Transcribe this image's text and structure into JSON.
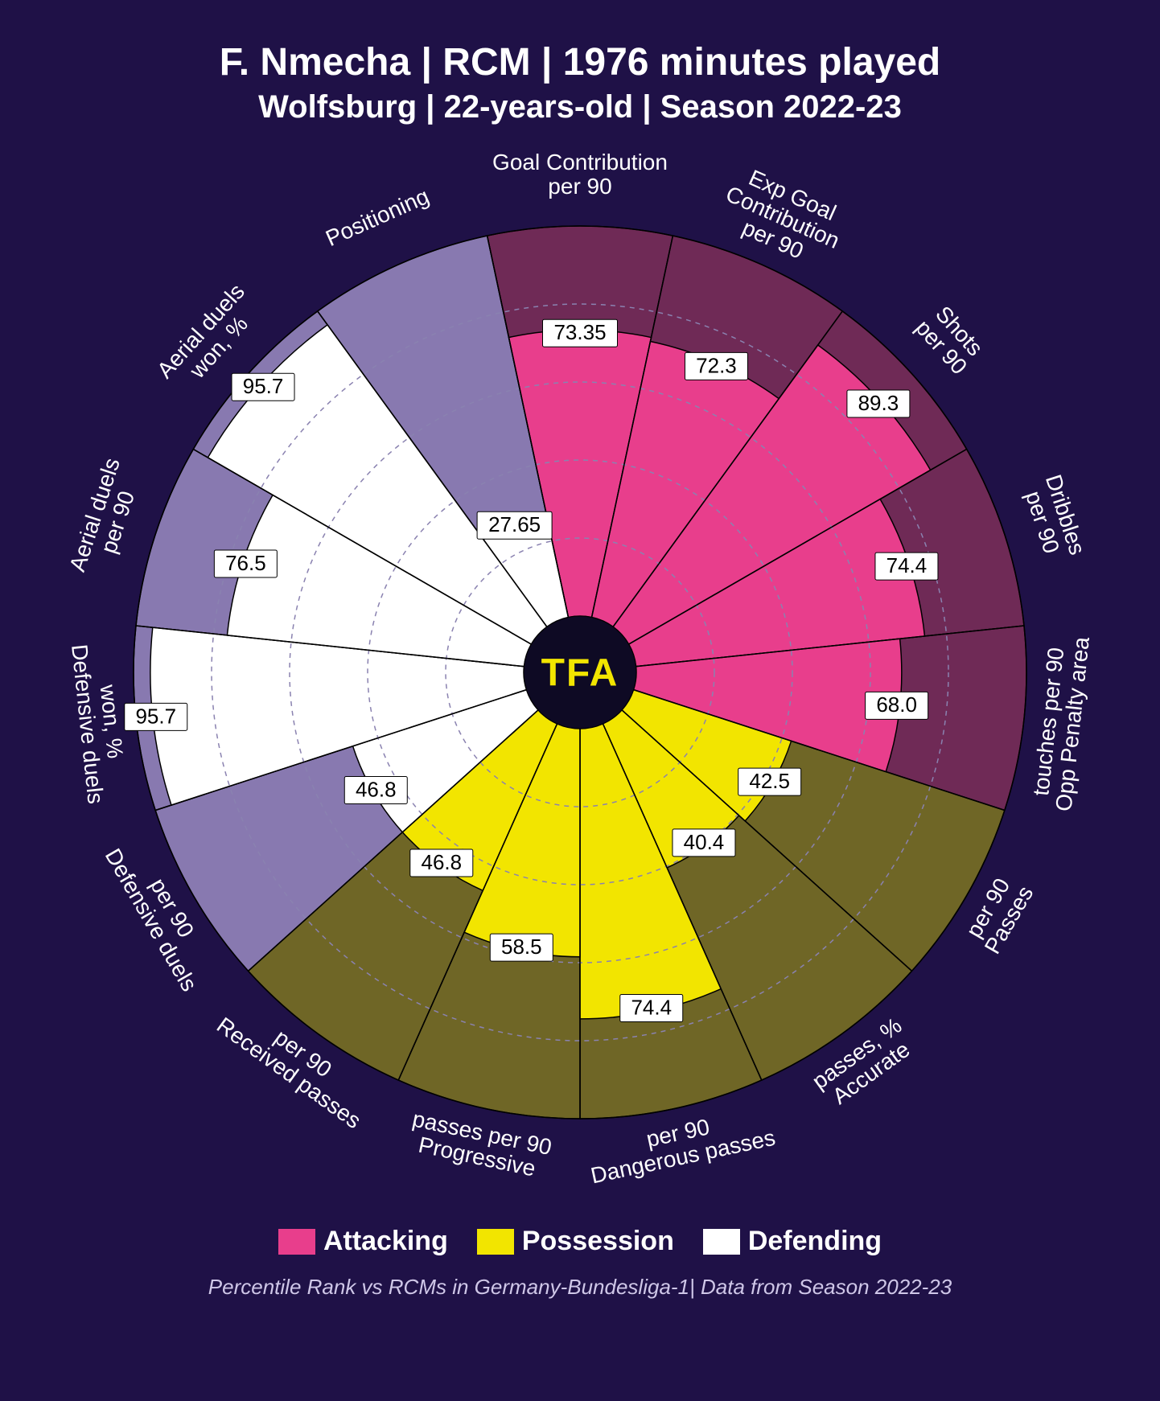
{
  "header": {
    "title": "F. Nmecha | RCM | 1976 minutes played",
    "subtitle": "Wolfsburg | 22-years-old | Season 2022-23"
  },
  "chart": {
    "type": "polar-bar",
    "background_color": "#1f1147",
    "center_label": "TFA",
    "center_label_color": "#f2e500",
    "center_circle_fill": "#0e0a24",
    "outer_dark_radius": 100,
    "inner_circle_radius": 12,
    "grid_rings": [
      20,
      40,
      60,
      80
    ],
    "grid_color": "#8a82b0",
    "grid_dash": "6 6",
    "sector_stroke": "#000000",
    "sector_stroke_width": 1.5,
    "value_scale_max": 100,
    "categories": {
      "Attacking": {
        "fill": "#e83e8c",
        "bg": "#6f2a56"
      },
      "Possession": {
        "fill": "#f2e500",
        "bg": "#6f6626"
      },
      "Defending": {
        "fill": "#ffffff",
        "bg": "#8879b0"
      }
    },
    "metrics": [
      {
        "label_lines": [
          "Goal Contribution",
          "per 90"
        ],
        "value": 73.35,
        "value_text": "73.35",
        "category": "Attacking"
      },
      {
        "label_lines": [
          "Exp Goal",
          "Contribution",
          "per 90"
        ],
        "value": 72.3,
        "value_text": "72.3",
        "category": "Attacking"
      },
      {
        "label_lines": [
          "Shots",
          "per 90"
        ],
        "value": 89.3,
        "value_text": "89.3",
        "category": "Attacking"
      },
      {
        "label_lines": [
          "Dribbles",
          "per 90"
        ],
        "value": 74.4,
        "value_text": "74.4",
        "category": "Attacking"
      },
      {
        "label_lines": [
          "Opp Penalty area",
          "touches per 90"
        ],
        "value": 68.0,
        "value_text": "68.0",
        "category": "Attacking"
      },
      {
        "label_lines": [
          "Passes",
          "per 90"
        ],
        "value": 42.5,
        "value_text": "42.5",
        "category": "Possession"
      },
      {
        "label_lines": [
          "Accurate",
          "passes, %"
        ],
        "value": 40.4,
        "value_text": "40.4",
        "category": "Possession"
      },
      {
        "label_lines": [
          "Dangerous passes",
          "per 90"
        ],
        "value": 74.4,
        "value_text": "74.4",
        "category": "Possession"
      },
      {
        "label_lines": [
          "Progressive",
          "passes per 90"
        ],
        "value": 58.5,
        "value_text": "58.5",
        "category": "Possession"
      },
      {
        "label_lines": [
          "Received passes",
          "per 90"
        ],
        "value": 46.8,
        "value_text": "46.8",
        "category": "Possession"
      },
      {
        "label_lines": [
          "Defensive duels",
          "per 90"
        ],
        "value": 46.8,
        "value_text": "46.8",
        "category": "Defending"
      },
      {
        "label_lines": [
          "Defensive duels",
          "won, %"
        ],
        "value": 95.7,
        "value_text": "95.7",
        "category": "Defending"
      },
      {
        "label_lines": [
          "Aerial duels",
          "per 90"
        ],
        "value": 76.5,
        "value_text": "76.5",
        "category": "Defending"
      },
      {
        "label_lines": [
          "Aerial duels",
          "won, %"
        ],
        "value": 95.7,
        "value_text": "95.7",
        "category": "Defending"
      },
      {
        "label_lines": [
          "Positioning"
        ],
        "value": 27.65,
        "value_text": "27.65",
        "category": "Defending"
      }
    ]
  },
  "legend": {
    "items": [
      {
        "label": "Attacking",
        "color": "#e83e8c"
      },
      {
        "label": "Possession",
        "color": "#f2e500"
      },
      {
        "label": "Defending",
        "color": "#ffffff"
      }
    ]
  },
  "footnote": "Percentile Rank vs RCMs in Germany-Bundesliga-1| Data from Season 2022-23"
}
